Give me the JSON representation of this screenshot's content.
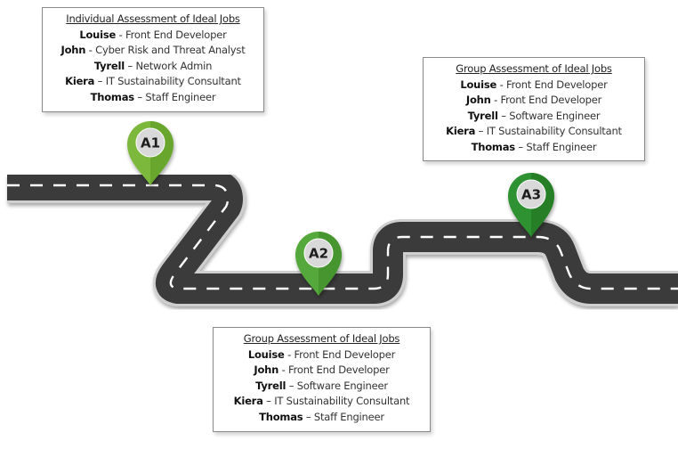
{
  "pins": [
    {
      "label": "A1",
      "color": "#7cb83a",
      "dark": "#4f8a1d"
    },
    {
      "label": "A2",
      "color": "#55a83a",
      "dark": "#2f7a1e"
    },
    {
      "label": "A3",
      "color": "#2f9132",
      "dark": "#1b6a1f"
    }
  ],
  "notes": {
    "a1": {
      "title": "Individual Assessment of Ideal Jobs",
      "rows": [
        {
          "name": "Louise",
          "sep": " - ",
          "role": "Front End Developer"
        },
        {
          "name": "John",
          "sep": " - ",
          "role": "Cyber Risk and Threat Analyst"
        },
        {
          "name": "Tyrell",
          "sep": " – ",
          "role": "Network Admin"
        },
        {
          "name": "Kiera",
          "sep": " – ",
          "role": "IT Sustainability Consultant"
        },
        {
          "name": "Thomas",
          "sep": " – ",
          "role": "Staff Engineer"
        }
      ]
    },
    "a3": {
      "title": "Group Assessment of Ideal Jobs",
      "rows": [
        {
          "name": "Louise",
          "sep": " - ",
          "role": "Front End Developer"
        },
        {
          "name": "John",
          "sep": " - ",
          "role": "Front End Developer"
        },
        {
          "name": "Tyrell",
          "sep": " – ",
          "role": "Software Engineer"
        },
        {
          "name": "Kiera",
          "sep": " – ",
          "role": "IT Sustainability Consultant"
        },
        {
          "name": "Thomas",
          "sep": " – ",
          "role": "Staff Engineer"
        }
      ]
    },
    "a2": {
      "title": "Group Assessment of Ideal Jobs",
      "rows": [
        {
          "name": "Louise",
          "sep": " - ",
          "role": "Front End Developer"
        },
        {
          "name": "John",
          "sep": " - ",
          "role": "Front End Developer"
        },
        {
          "name": "Tyrell",
          "sep": " – ",
          "role": "Software Engineer"
        },
        {
          "name": "Kiera",
          "sep": " – ",
          "role": "IT Sustainability Consultant"
        },
        {
          "name": "Thomas",
          "sep": " – ",
          "role": "Staff Engineer"
        }
      ]
    }
  },
  "colors": {
    "road": "#3a3a3a",
    "road_edge": "#d9d9d9",
    "lane": "#ffffff"
  }
}
